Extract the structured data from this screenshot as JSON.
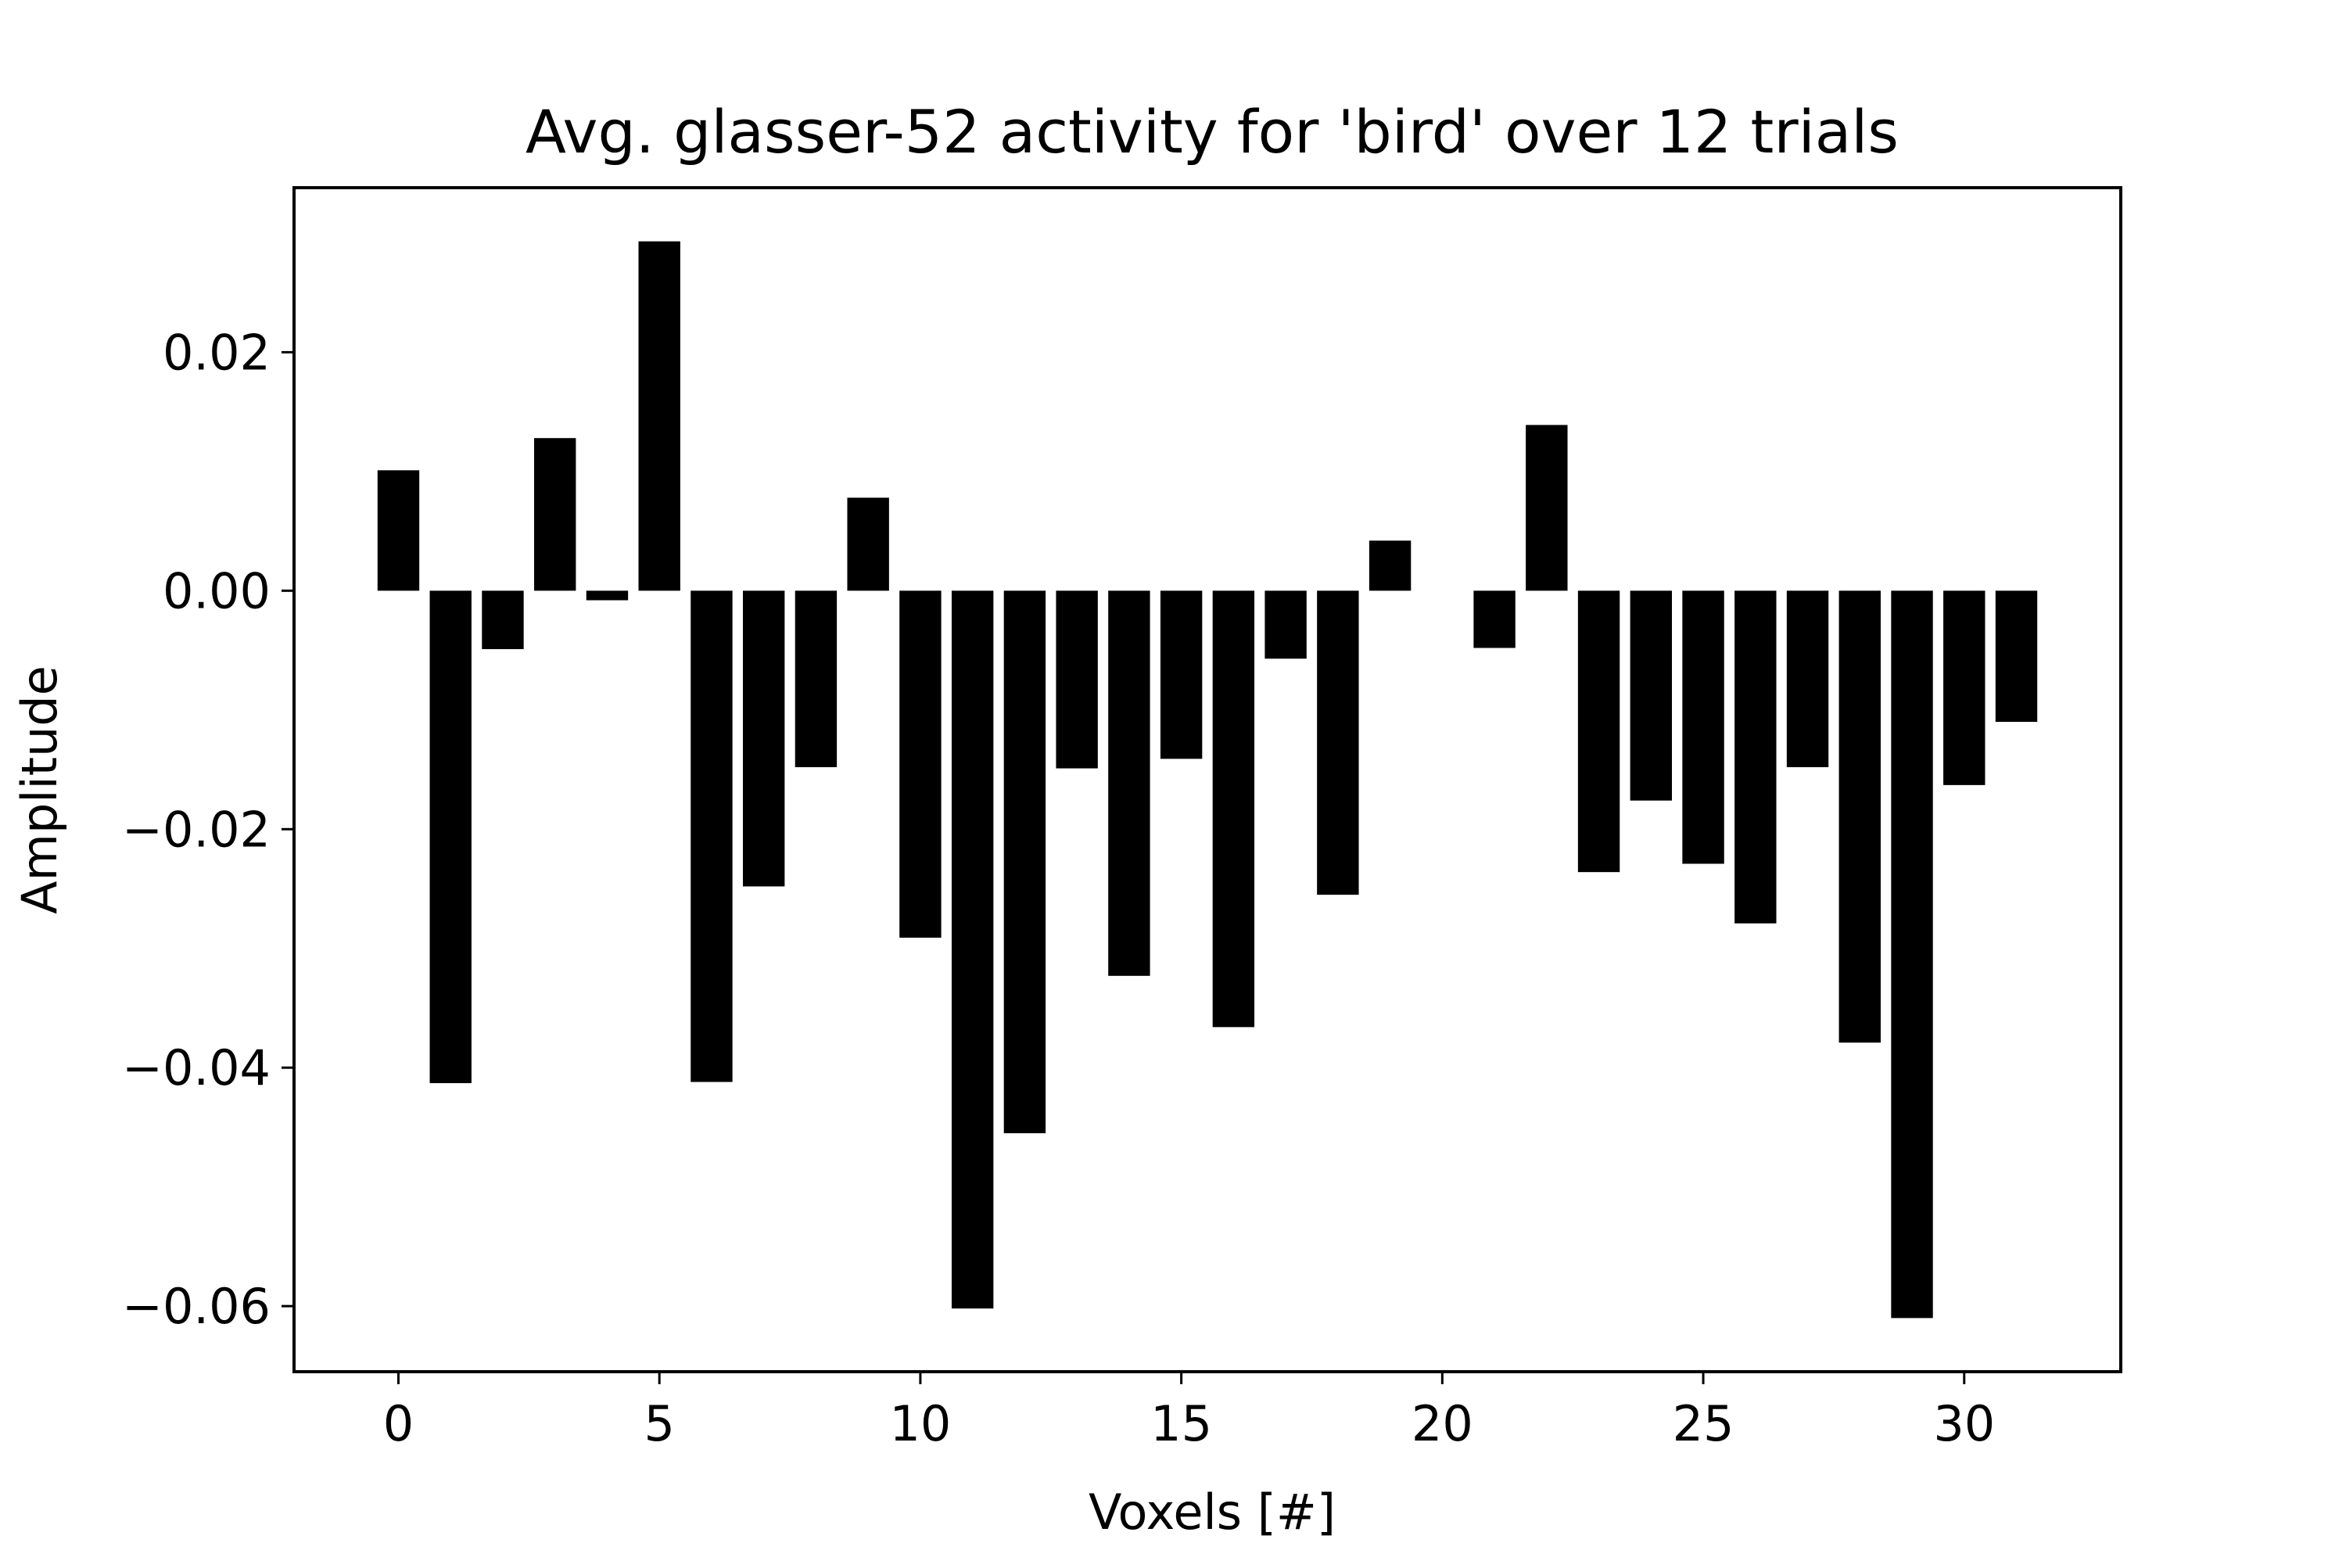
{
  "chart_data": {
    "type": "bar",
    "title": "Avg. glasser-52 activity for 'bird' over 12 trials",
    "xlabel": "Voxels [#]",
    "ylabel": "Amplitude",
    "x": [
      0,
      1,
      2,
      3,
      4,
      5,
      6,
      7,
      8,
      9,
      10,
      11,
      12,
      13,
      14,
      15,
      16,
      17,
      18,
      19,
      20,
      21,
      22,
      23,
      24,
      25,
      26,
      27,
      28,
      29,
      30,
      31
    ],
    "values": [
      0.0101,
      -0.0413,
      -0.0049,
      0.0128,
      -0.0008,
      0.0293,
      -0.0412,
      -0.0248,
      -0.0148,
      0.0078,
      -0.0291,
      -0.0602,
      -0.0455,
      -0.0149,
      -0.0323,
      -0.0141,
      -0.0366,
      -0.0057,
      -0.0255,
      0.0042,
      0.0,
      -0.0048,
      0.0139,
      -0.0236,
      -0.0176,
      -0.0229,
      -0.0279,
      -0.0148,
      -0.0379,
      -0.061,
      -0.0163,
      -0.011
    ],
    "xlim": [
      -2,
      33
    ],
    "ylim": [
      -0.0655,
      0.0338
    ],
    "xticks": [
      0,
      5,
      10,
      15,
      20,
      25,
      30
    ],
    "xtick_labels": [
      "0",
      "5",
      "10",
      "15",
      "20",
      "25",
      "30"
    ],
    "yticks": [
      0.02,
      0.0,
      -0.02,
      -0.04,
      -0.06
    ],
    "ytick_labels": [
      "0.02",
      "0.00",
      "−0.02",
      "−0.04",
      "−0.06"
    ],
    "bar_color": "#000000",
    "grid": false
  }
}
